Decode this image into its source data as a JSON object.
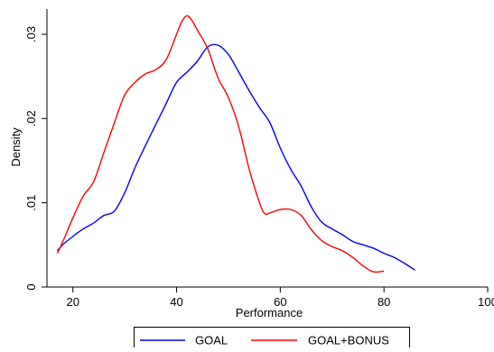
{
  "chart_data": {
    "type": "line",
    "title": "",
    "xlabel": "Performance",
    "ylabel": "Density",
    "xlim": [
      15,
      100
    ],
    "ylim": [
      0,
      0.033
    ],
    "x_ticks": [
      {
        "value": 20,
        "label": "20"
      },
      {
        "value": 40,
        "label": "40"
      },
      {
        "value": 60,
        "label": "60"
      },
      {
        "value": 80,
        "label": "80"
      },
      {
        "value": 100,
        "label": "100"
      }
    ],
    "y_ticks": [
      {
        "value": 0,
        "label": "0"
      },
      {
        "value": 0.01,
        "label": ".01"
      },
      {
        "value": 0.02,
        "label": ".02"
      },
      {
        "value": 0.03,
        "label": ".03"
      }
    ],
    "grid": false,
    "legend_position": "bottom",
    "series": [
      {
        "name": "GOAL",
        "color": "#0000ff",
        "x": [
          17,
          18,
          20,
          22,
          24,
          26,
          28,
          30,
          32,
          34,
          36,
          38,
          40,
          42,
          44,
          46,
          48,
          50,
          52,
          54,
          56,
          58,
          60,
          62,
          64,
          66,
          68,
          70,
          72,
          74,
          76,
          78,
          80,
          82,
          84,
          86
        ],
        "y": [
          0.0043,
          0.005,
          0.006,
          0.0069,
          0.0076,
          0.0085,
          0.009,
          0.0112,
          0.0142,
          0.0168,
          0.0193,
          0.0218,
          0.0243,
          0.0255,
          0.0268,
          0.0285,
          0.0287,
          0.0276,
          0.0255,
          0.0233,
          0.0213,
          0.0195,
          0.0165,
          0.014,
          0.012,
          0.0095,
          0.0077,
          0.0069,
          0.0062,
          0.0054,
          0.005,
          0.0046,
          0.004,
          0.0035,
          0.0028,
          0.002
        ]
      },
      {
        "name": "GOAL+BONUS",
        "color": "#ff0000",
        "x": [
          17,
          18,
          20,
          22,
          24,
          26,
          28,
          30,
          32,
          34,
          36,
          38,
          40,
          41,
          42,
          43,
          44,
          46,
          48,
          50,
          52,
          54,
          56,
          57,
          58,
          60,
          62,
          64,
          66,
          68,
          70,
          72,
          74,
          76,
          78,
          80
        ],
        "y": [
          0.004,
          0.0053,
          0.0082,
          0.0108,
          0.0125,
          0.016,
          0.0195,
          0.0228,
          0.0243,
          0.0253,
          0.0258,
          0.027,
          0.03,
          0.0315,
          0.0322,
          0.0316,
          0.0305,
          0.0283,
          0.0248,
          0.0225,
          0.019,
          0.014,
          0.01,
          0.0087,
          0.0088,
          0.0092,
          0.0092,
          0.0085,
          0.0068,
          0.0055,
          0.0048,
          0.0043,
          0.0035,
          0.0025,
          0.0018,
          0.0019
        ]
      }
    ]
  }
}
